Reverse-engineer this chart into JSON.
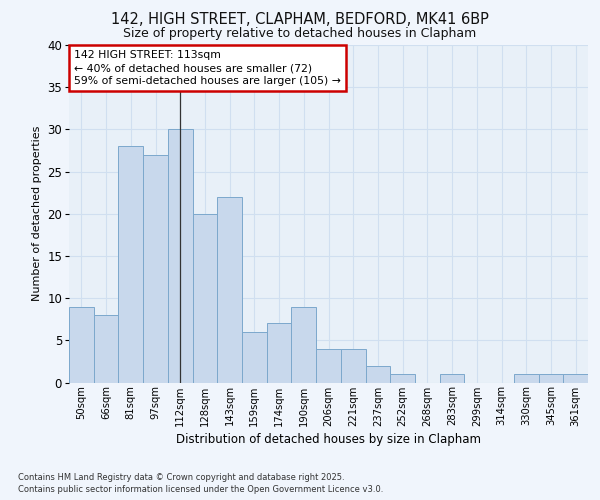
{
  "title_line1": "142, HIGH STREET, CLAPHAM, BEDFORD, MK41 6BP",
  "title_line2": "Size of property relative to detached houses in Clapham",
  "xlabel": "Distribution of detached houses by size in Clapham",
  "ylabel": "Number of detached properties",
  "categories": [
    "50sqm",
    "66sqm",
    "81sqm",
    "97sqm",
    "112sqm",
    "128sqm",
    "143sqm",
    "159sqm",
    "174sqm",
    "190sqm",
    "206sqm",
    "221sqm",
    "237sqm",
    "252sqm",
    "268sqm",
    "283sqm",
    "299sqm",
    "314sqm",
    "330sqm",
    "345sqm",
    "361sqm"
  ],
  "values": [
    9,
    8,
    28,
    27,
    30,
    20,
    22,
    6,
    7,
    9,
    4,
    4,
    2,
    1,
    0,
    1,
    0,
    0,
    1,
    1,
    1
  ],
  "bar_color": "#c8d8ec",
  "bar_edge_color": "#7ca8cc",
  "vline_x_index": 4,
  "annotation_line1": "142 HIGH STREET: 113sqm",
  "annotation_line2": "← 40% of detached houses are smaller (72)",
  "annotation_line3": "59% of semi-detached houses are larger (105) →",
  "annotation_box_facecolor": "#ffffff",
  "annotation_box_edgecolor": "#cc0000",
  "grid_color": "#d0dff0",
  "plot_bg_color": "#e8f0f8",
  "fig_bg_color": "#f0f5fc",
  "ylim": [
    0,
    40
  ],
  "yticks": [
    0,
    5,
    10,
    15,
    20,
    25,
    30,
    35,
    40
  ],
  "footer_line1": "Contains HM Land Registry data © Crown copyright and database right 2025.",
  "footer_line2": "Contains public sector information licensed under the Open Government Licence v3.0."
}
